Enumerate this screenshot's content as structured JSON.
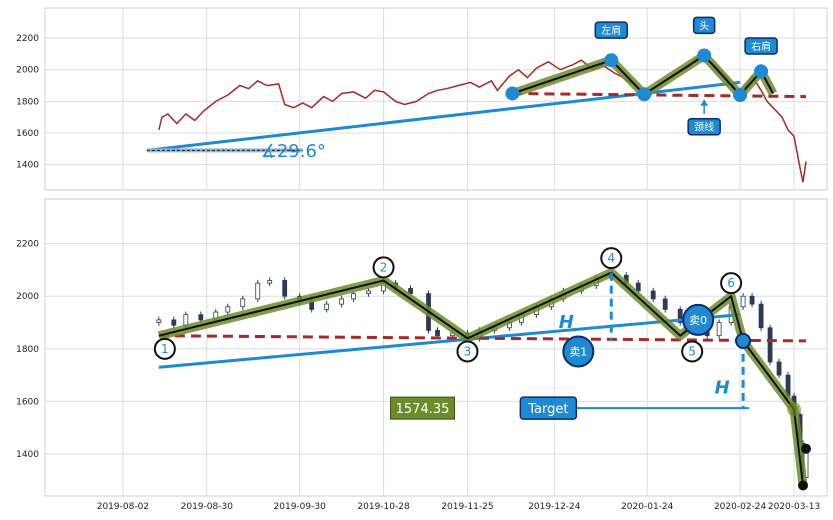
{
  "chart_data": [
    {
      "type": "line",
      "panel": "top",
      "title": "",
      "ylim": [
        1240,
        2390
      ],
      "yticks": [
        "1400",
        "1600",
        "1800",
        "2000",
        "2200"
      ],
      "grid": true,
      "line_color": "#a52a2a",
      "series": [
        {
          "values_xy": [
            [
              "2019-08-14",
              1620
            ],
            [
              "2019-08-15",
              1700
            ],
            [
              "2019-08-17",
              1720
            ],
            [
              "2019-08-20",
              1660
            ],
            [
              "2019-08-23",
              1720
            ],
            [
              "2019-08-26",
              1680
            ],
            [
              "2019-08-29",
              1740
            ],
            [
              "2019-09-02",
              1800
            ],
            [
              "2019-09-06",
              1840
            ],
            [
              "2019-09-10",
              1900
            ],
            [
              "2019-09-13",
              1880
            ],
            [
              "2019-09-16",
              1930
            ],
            [
              "2019-09-19",
              1900
            ],
            [
              "2019-09-23",
              1910
            ],
            [
              "2019-09-25",
              1780
            ],
            [
              "2019-09-28",
              1760
            ],
            [
              "2019-10-01",
              1790
            ],
            [
              "2019-10-04",
              1760
            ],
            [
              "2019-10-08",
              1830
            ],
            [
              "2019-10-11",
              1800
            ],
            [
              "2019-10-14",
              1850
            ],
            [
              "2019-10-18",
              1860
            ],
            [
              "2019-10-22",
              1820
            ],
            [
              "2019-10-25",
              1870
            ],
            [
              "2019-10-28",
              1860
            ],
            [
              "2019-11-01",
              1800
            ],
            [
              "2019-11-04",
              1780
            ],
            [
              "2019-11-08",
              1800
            ],
            [
              "2019-11-12",
              1850
            ],
            [
              "2019-11-15",
              1870
            ],
            [
              "2019-11-18",
              1880
            ],
            [
              "2019-11-22",
              1900
            ],
            [
              "2019-11-26",
              1920
            ],
            [
              "2019-11-29",
              1890
            ],
            [
              "2019-12-03",
              1930
            ],
            [
              "2019-12-05",
              1870
            ],
            [
              "2019-12-09",
              1960
            ],
            [
              "2019-12-12",
              2000
            ],
            [
              "2019-12-15",
              1950
            ],
            [
              "2019-12-18",
              2010
            ],
            [
              "2019-12-22",
              2050
            ],
            [
              "2019-12-26",
              2000
            ],
            [
              "2019-12-30",
              2030
            ],
            [
              "2020-01-02",
              2060
            ],
            [
              "2020-01-06",
              2000
            ],
            [
              "2020-01-09",
              2030
            ],
            [
              "2020-01-13",
              1980
            ],
            [
              "2020-01-16",
              1950
            ],
            [
              "2020-01-20",
              1900
            ],
            [
              "2020-01-23",
              1860
            ],
            [
              "2020-01-26",
              1880
            ],
            [
              "2020-01-29",
              1920
            ],
            [
              "2020-02-01",
              1960
            ],
            [
              "2020-02-04",
              1990
            ],
            [
              "2020-02-07",
              2020
            ],
            [
              "2020-02-10",
              2080
            ],
            [
              "2020-02-13",
              2060
            ],
            [
              "2020-02-16",
              2020
            ],
            [
              "2020-02-19",
              1960
            ],
            [
              "2020-02-22",
              1890
            ],
            [
              "2020-02-24",
              1840
            ],
            [
              "2020-02-26",
              1900
            ],
            [
              "2020-02-28",
              1960
            ],
            [
              "2020-03-02",
              1870
            ],
            [
              "2020-03-04",
              1800
            ],
            [
              "2020-03-06",
              1760
            ],
            [
              "2020-03-09",
              1700
            ],
            [
              "2020-03-11",
              1620
            ],
            [
              "2020-03-13",
              1580
            ],
            [
              "2020-03-15",
              1380
            ],
            [
              "2020-03-16",
              1290
            ],
            [
              "2020-03-17",
              1420
            ]
          ]
        }
      ],
      "overlays": {
        "trendline": {
          "from": [
            "2019-08-10",
            1490
          ],
          "to": [
            "2020-02-24",
            1920
          ],
          "color": "#1f8ad1"
        },
        "baseline": {
          "from": [
            "2019-08-10",
            1490
          ],
          "to": [
            "2019-10-01",
            1490
          ]
        },
        "angle_text": "∡29.6°",
        "neckline": {
          "from": [
            "2019-12-10",
            1850
          ],
          "to": [
            "2020-03-17",
            1830
          ],
          "color": "#a52a2a"
        },
        "zigzag": [
          [
            "2019-12-10",
            1850
          ],
          [
            "2020-01-12",
            2060
          ],
          [
            "2020-01-23",
            1845
          ],
          [
            "2020-02-12",
            2090
          ],
          [
            "2020-02-24",
            1840
          ],
          [
            "2020-03-02",
            1990
          ],
          [
            "2020-03-06",
            1850
          ]
        ],
        "zigzag_color": "#6e8b2b",
        "markers": [
          [
            "2019-12-10",
            1850
          ],
          [
            "2020-01-12",
            2060
          ],
          [
            "2020-01-23",
            1845
          ],
          [
            "2020-02-12",
            2090
          ],
          [
            "2020-02-24",
            1840
          ],
          [
            "2020-03-02",
            1990
          ]
        ],
        "annotations": [
          {
            "text": "左肩",
            "x": "2020-01-12",
            "y": 2250
          },
          {
            "text": "头",
            "x": "2020-02-12",
            "y": 2280
          },
          {
            "text": "右肩",
            "x": "2020-03-02",
            "y": 2150
          },
          {
            "text": "颈线",
            "x": "2020-02-12",
            "y": 1640
          }
        ]
      }
    },
    {
      "type": "candlestick",
      "panel": "bottom",
      "title": "",
      "ylim": [
        1240,
        2370
      ],
      "yticks": [
        "1400",
        "1600",
        "1800",
        "2000",
        "2200"
      ],
      "xticks": [
        "2019-08-02",
        "2019-08-30",
        "2019-09-30",
        "2019-10-28",
        "2019-11-25",
        "2019-12-24",
        "2020-01-24",
        "2020-02-24",
        "2020-03-13"
      ],
      "grid": true,
      "closes": [
        [
          "2019-08-14",
          1910
        ],
        [
          "2019-08-19",
          1890
        ],
        [
          "2019-08-23",
          1930
        ],
        [
          "2019-08-28",
          1910
        ],
        [
          "2019-09-02",
          1940
        ],
        [
          "2019-09-06",
          1960
        ],
        [
          "2019-09-11",
          1990
        ],
        [
          "2019-09-16",
          2050
        ],
        [
          "2019-09-20",
          2060
        ],
        [
          "2019-09-25",
          2000
        ],
        [
          "2019-09-30",
          1980
        ],
        [
          "2019-10-04",
          1950
        ],
        [
          "2019-10-09",
          1970
        ],
        [
          "2019-10-14",
          1990
        ],
        [
          "2019-10-18",
          2010
        ],
        [
          "2019-10-23",
          2020
        ],
        [
          "2019-10-28",
          2050
        ],
        [
          "2019-11-01",
          2030
        ],
        [
          "2019-11-06",
          2010
        ],
        [
          "2019-11-12",
          1870
        ],
        [
          "2019-11-15",
          1850
        ],
        [
          "2019-11-20",
          1860
        ],
        [
          "2019-11-25",
          1840
        ],
        [
          "2019-11-29",
          1870
        ],
        [
          "2019-12-04",
          1880
        ],
        [
          "2019-12-09",
          1900
        ],
        [
          "2019-12-13",
          1930
        ],
        [
          "2019-12-18",
          1960
        ],
        [
          "2019-12-23",
          1990
        ],
        [
          "2019-12-27",
          2020
        ],
        [
          "2020-01-02",
          2040
        ],
        [
          "2020-01-07",
          2070
        ],
        [
          "2020-01-12",
          2080
        ],
        [
          "2020-01-17",
          2050
        ],
        [
          "2020-01-21",
          2020
        ],
        [
          "2020-01-26",
          1990
        ],
        [
          "2020-01-30",
          1950
        ],
        [
          "2020-02-04",
          1900
        ],
        [
          "2020-02-08",
          1870
        ],
        [
          "2020-02-13",
          1850
        ],
        [
          "2020-02-17",
          1900
        ],
        [
          "2020-02-21",
          1960
        ],
        [
          "2020-02-25",
          2000
        ],
        [
          "2020-02-28",
          1970
        ],
        [
          "2020-03-02",
          1880
        ],
        [
          "2020-03-05",
          1750
        ],
        [
          "2020-03-08",
          1700
        ],
        [
          "2020-03-11",
          1620
        ],
        [
          "2020-03-13",
          1550
        ],
        [
          "2020-03-15",
          1440
        ],
        [
          "2020-03-16",
          1310
        ],
        [
          "2020-03-17",
          1420
        ]
      ],
      "overlays": {
        "trendline": {
          "from": [
            "2019-08-14",
            1730
          ],
          "to": [
            "2020-02-24",
            1930
          ],
          "color": "#1f8ad1"
        },
        "neckline": {
          "from": [
            "2019-08-14",
            1850
          ],
          "to": [
            "2020-03-17",
            1830
          ],
          "color": "#a52a2a"
        },
        "zigzag": [
          [
            "2019-08-14",
            1850
          ],
          [
            "2019-10-28",
            2060
          ],
          [
            "2019-11-25",
            1840
          ],
          [
            "2020-01-12",
            2090
          ],
          [
            "2020-02-04",
            1850
          ],
          [
            "2020-02-21",
            2000
          ],
          [
            "2020-02-25",
            1830
          ],
          [
            "2020-03-13",
            1570
          ],
          [
            "2020-03-16",
            1280
          ]
        ],
        "zigzag_color": "#6e8b2b",
        "points": [
          {
            "label": "1",
            "x": "2019-08-16",
            "y": 1800
          },
          {
            "label": "2",
            "x": "2019-10-28",
            "y": 2110
          },
          {
            "label": "3",
            "x": "2019-11-25",
            "y": 1790
          },
          {
            "label": "4",
            "x": "2020-01-12",
            "y": 2145
          },
          {
            "label": "5",
            "x": "2020-02-08",
            "y": 1790
          },
          {
            "label": "6",
            "x": "2020-02-21",
            "y": 2050
          }
        ],
        "sell_labels": [
          {
            "text": "卖0",
            "x": "2020-02-10",
            "y": 1910
          },
          {
            "text": "卖1",
            "x": "2020-01-01",
            "y": 1790
          }
        ],
        "h_labels": [
          {
            "text": "H",
            "x": "2019-12-28",
            "y": 1880
          },
          {
            "text": "H",
            "x": "2020-02-18",
            "y": 1630
          }
        ],
        "target_label": "Target",
        "target_value_label": "1574.35",
        "target_level": 1574.35,
        "target_line": {
          "from": [
            "2019-12-28",
            1574.35
          ],
          "to": [
            "2020-02-27",
            1574.35
          ]
        },
        "measure_lines": [
          {
            "x": "2020-01-12",
            "from": 2090,
            "to": 1835
          },
          {
            "x": "2020-02-25",
            "from": 1830,
            "to": 1570
          }
        ],
        "end_markers": [
          [
            "2020-03-16",
            1280
          ],
          [
            "2020-03-17",
            1420
          ]
        ]
      }
    }
  ]
}
